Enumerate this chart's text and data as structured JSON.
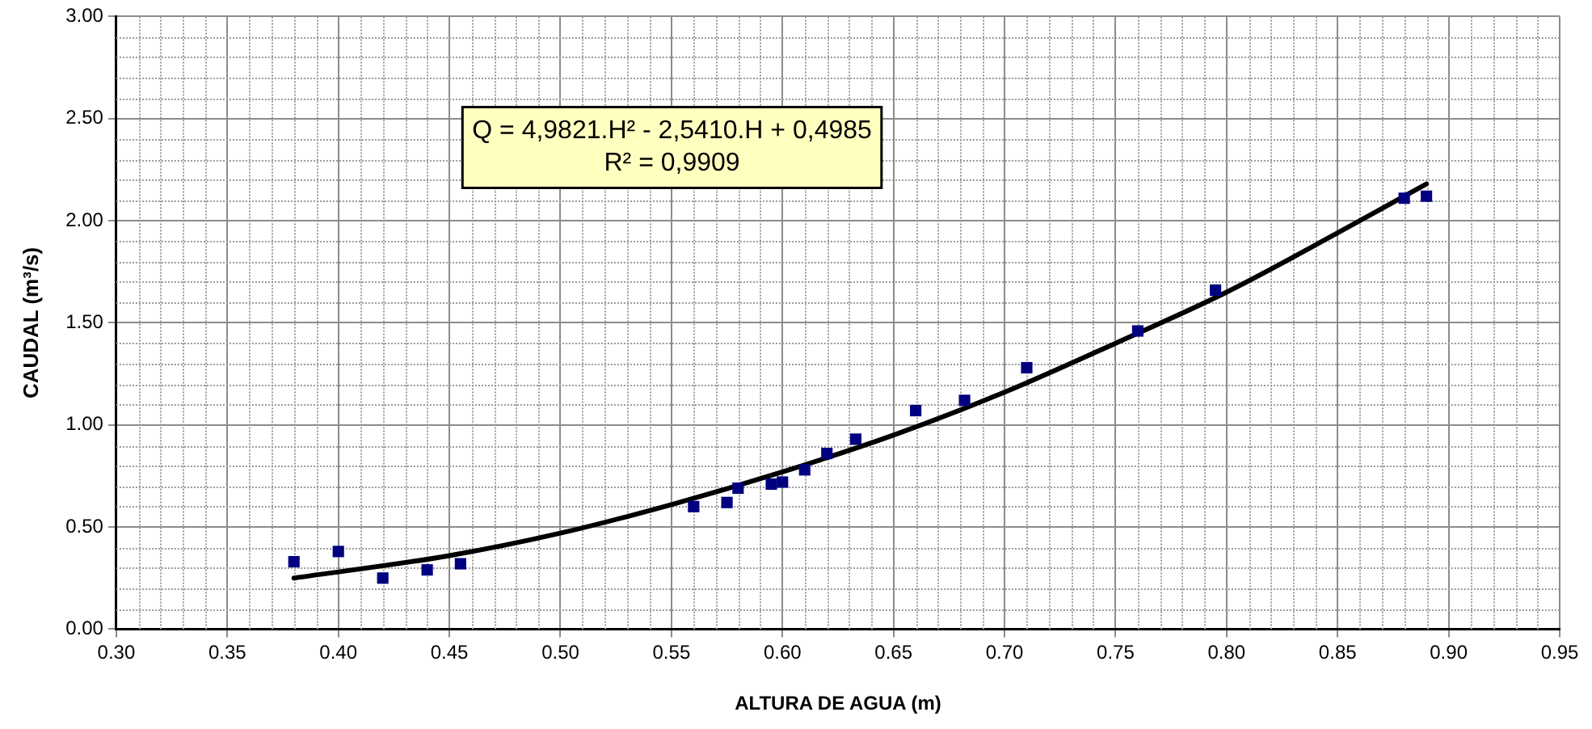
{
  "chart_data": {
    "type": "scatter",
    "xlabel": "ALTURA DE AGUA (m)",
    "ylabel": "CAUDAL (m³/s)",
    "xlim": [
      0.3,
      0.95
    ],
    "xticks": [
      {
        "value": 0.3,
        "label": "0.30"
      },
      {
        "value": 0.35,
        "label": "0.35"
      },
      {
        "value": 0.4,
        "label": "0.40"
      },
      {
        "value": 0.45,
        "label": "0.45"
      },
      {
        "value": 0.5,
        "label": "0.50"
      },
      {
        "value": 0.55,
        "label": "0.55"
      },
      {
        "value": 0.6,
        "label": "0.60"
      },
      {
        "value": 0.65,
        "label": "0.65"
      },
      {
        "value": 0.7,
        "label": "0.70"
      },
      {
        "value": 0.75,
        "label": "0.75"
      },
      {
        "value": 0.8,
        "label": "0.80"
      },
      {
        "value": 0.85,
        "label": "0.85"
      },
      {
        "value": 0.9,
        "label": "0.90"
      },
      {
        "value": 0.95,
        "label": "0.95"
      }
    ],
    "ylim": [
      0,
      3
    ],
    "yticks": [
      {
        "value": 0,
        "label": "0.00"
      },
      {
        "value": 0.5,
        "label": "0.50"
      },
      {
        "value": 1,
        "label": "1.00"
      },
      {
        "value": 1.5,
        "label": "1.50"
      },
      {
        "value": 2,
        "label": "2.00"
      },
      {
        "value": 2.5,
        "label": "2.50"
      },
      {
        "value": 3,
        "label": "3.00"
      }
    ],
    "grid": true,
    "legend": false,
    "annotations": [
      "Q = 4,9821.H² - 2,5410.H + 0,4985",
      "R² = 0,9909"
    ],
    "series": [
      {
        "type": "scatter",
        "color": "#000080",
        "marker": "square",
        "x": [
          0.38,
          0.4,
          0.42,
          0.44,
          0.455,
          0.56,
          0.575,
          0.58,
          0.595,
          0.6,
          0.61,
          0.62,
          0.633,
          0.66,
          0.682,
          0.71,
          0.76,
          0.795,
          0.88,
          0.89
        ],
        "values": [
          0.33,
          0.38,
          0.25,
          0.29,
          0.32,
          0.6,
          0.62,
          0.69,
          0.71,
          0.72,
          0.78,
          0.86,
          0.93,
          1.07,
          1.12,
          1.28,
          1.46,
          1.66,
          2.11,
          2.12
        ]
      },
      {
        "type": "line",
        "color": "#000000",
        "marker": "none",
        "line_style": "solid",
        "x": [
          0.38,
          0.45,
          0.5,
          0.55,
          0.6,
          0.65,
          0.7,
          0.75,
          0.8,
          0.85,
          0.89
        ],
        "values": [
          0.25,
          0.36,
          0.47,
          0.61,
          0.77,
          0.95,
          1.16,
          1.4,
          1.65,
          1.94,
          2.18
        ]
      }
    ]
  }
}
